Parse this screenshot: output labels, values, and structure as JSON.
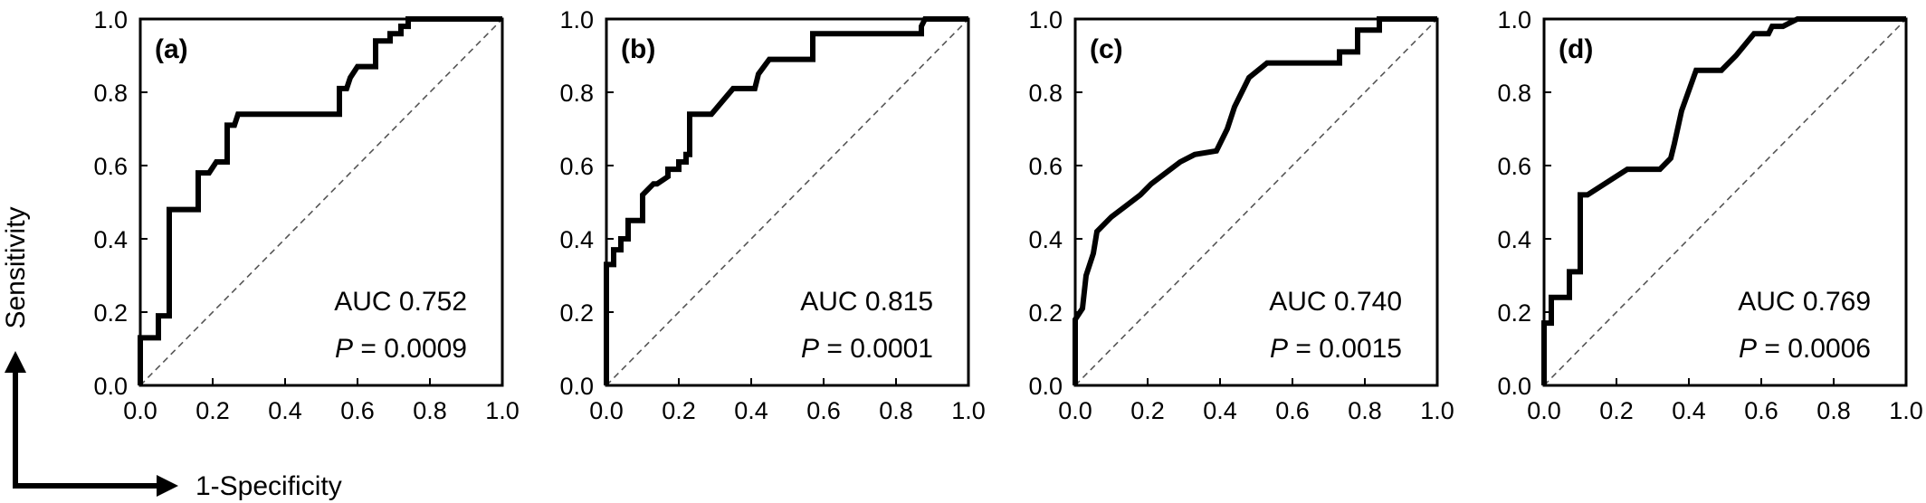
{
  "axis_titles": {
    "y": "Sensitivity",
    "x": "1-Specificity"
  },
  "chart_data": [
    {
      "type": "line",
      "panel_label": "(a)",
      "xlim": [
        0,
        1
      ],
      "ylim": [
        0,
        1
      ],
      "x_ticks": [
        "0.0",
        "0.2",
        "0.4",
        "0.6",
        "0.8",
        "1.0"
      ],
      "y_ticks": [
        "0.0",
        "0.2",
        "0.4",
        "0.6",
        "0.8",
        "1.0"
      ],
      "auc_text": "AUC 0.752",
      "p_label": "P",
      "p_text": " = 0.0009",
      "reference_line": true,
      "series": [
        {
          "x": [
            0,
            0,
            0.05,
            0.05,
            0.08,
            0.08,
            0.16,
            0.16,
            0.19,
            0.21,
            0.24,
            0.24,
            0.26,
            0.27,
            0.55,
            0.55,
            0.57,
            0.58,
            0.58,
            0.6,
            0.65,
            0.65,
            0.69,
            0.69,
            0.72,
            0.72,
            0.74,
            0.74,
            1.0
          ],
          "y": [
            0,
            0.13,
            0.13,
            0.19,
            0.19,
            0.48,
            0.48,
            0.58,
            0.58,
            0.61,
            0.61,
            0.71,
            0.71,
            0.74,
            0.74,
            0.81,
            0.81,
            0.84,
            0.84,
            0.87,
            0.87,
            0.94,
            0.94,
            0.96,
            0.96,
            0.98,
            0.98,
            1.0,
            1.0
          ]
        }
      ]
    },
    {
      "type": "line",
      "panel_label": "(b)",
      "xlim": [
        0,
        1
      ],
      "ylim": [
        0,
        1
      ],
      "x_ticks": [
        "0.0",
        "0.2",
        "0.4",
        "0.6",
        "0.8",
        "1.0"
      ],
      "y_ticks": [
        "0.0",
        "0.2",
        "0.4",
        "0.6",
        "0.8",
        "1.0"
      ],
      "auc_text": "AUC 0.815",
      "p_label": "P",
      "p_text": " = 0.0001",
      "reference_line": true,
      "series": [
        {
          "x": [
            0,
            0,
            0.02,
            0.02,
            0.04,
            0.04,
            0.06,
            0.06,
            0.1,
            0.1,
            0.13,
            0.14,
            0.17,
            0.17,
            0.2,
            0.2,
            0.22,
            0.22,
            0.23,
            0.23,
            0.29,
            0.35,
            0.41,
            0.42,
            0.45,
            0.57,
            0.57,
            0.87,
            0.87,
            0.88,
            1.0
          ],
          "y": [
            0,
            0.33,
            0.33,
            0.37,
            0.37,
            0.4,
            0.4,
            0.45,
            0.45,
            0.52,
            0.55,
            0.55,
            0.57,
            0.59,
            0.59,
            0.61,
            0.61,
            0.63,
            0.63,
            0.74,
            0.74,
            0.81,
            0.81,
            0.85,
            0.89,
            0.89,
            0.96,
            0.96,
            0.98,
            1.0,
            1.0
          ]
        }
      ]
    },
    {
      "type": "line",
      "panel_label": "(c)",
      "xlim": [
        0,
        1
      ],
      "ylim": [
        0,
        1
      ],
      "x_ticks": [
        "0.0",
        "0.2",
        "0.4",
        "0.6",
        "0.8",
        "1.0"
      ],
      "y_ticks": [
        "0.0",
        "0.2",
        "0.4",
        "0.6",
        "0.8",
        "1.0"
      ],
      "auc_text": "AUC 0.740",
      "p_label": "P",
      "p_text": " = 0.0015",
      "reference_line": true,
      "series": [
        {
          "x": [
            0,
            0,
            0.02,
            0.03,
            0.03,
            0.05,
            0.06,
            0.06,
            0.1,
            0.14,
            0.18,
            0.21,
            0.25,
            0.29,
            0.33,
            0.39,
            0.42,
            0.44,
            0.44,
            0.46,
            0.48,
            0.53,
            0.73,
            0.73,
            0.78,
            0.78,
            0.84,
            0.84,
            1.0
          ],
          "y": [
            0,
            0.18,
            0.21,
            0.3,
            0.3,
            0.36,
            0.42,
            0.42,
            0.46,
            0.49,
            0.52,
            0.55,
            0.58,
            0.61,
            0.63,
            0.64,
            0.7,
            0.76,
            0.76,
            0.8,
            0.84,
            0.88,
            0.88,
            0.91,
            0.91,
            0.97,
            0.97,
            1.0,
            1.0
          ]
        }
      ]
    },
    {
      "type": "line",
      "panel_label": "(d)",
      "xlim": [
        0,
        1
      ],
      "ylim": [
        0,
        1
      ],
      "x_ticks": [
        "0.0",
        "0.2",
        "0.4",
        "0.6",
        "0.8",
        "1.0"
      ],
      "y_ticks": [
        "0.0",
        "0.2",
        "0.4",
        "0.6",
        "0.8",
        "1.0"
      ],
      "auc_text": "AUC 0.769",
      "p_label": "P",
      "p_text": " = 0.0006",
      "reference_line": true,
      "series": [
        {
          "x": [
            0,
            0,
            0.02,
            0.02,
            0.07,
            0.07,
            0.1,
            0.1,
            0.12,
            0.23,
            0.32,
            0.35,
            0.36,
            0.38,
            0.42,
            0.44,
            0.49,
            0.53,
            0.58,
            0.6,
            0.62,
            0.63,
            0.66,
            0.7,
            1.0
          ],
          "y": [
            0,
            0.17,
            0.17,
            0.24,
            0.24,
            0.31,
            0.31,
            0.52,
            0.52,
            0.59,
            0.59,
            0.62,
            0.66,
            0.75,
            0.86,
            0.86,
            0.86,
            0.9,
            0.96,
            0.96,
            0.96,
            0.98,
            0.98,
            1.0,
            1.0
          ]
        }
      ]
    }
  ]
}
